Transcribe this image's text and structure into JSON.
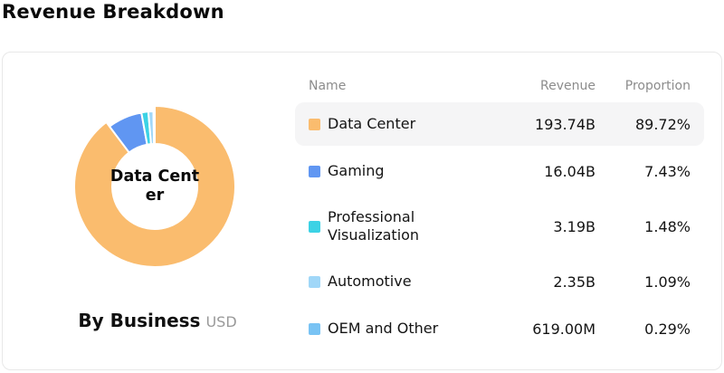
{
  "page": {
    "title": "Revenue Breakdown"
  },
  "colors": {
    "card_border": "#E8E8E8",
    "row_highlight": "#F5F5F6",
    "header_text": "#8C8C8C",
    "body_text": "#141414",
    "muted_text": "#999999",
    "slice_gap": "#FFFFFF"
  },
  "table": {
    "columns": [
      "Name",
      "Revenue",
      "Proportion"
    ]
  },
  "chart_data": {
    "type": "pie",
    "variant": "donut",
    "title": "By Business",
    "unit": "USD",
    "center_label": "Data Center",
    "center_label_lines": [
      "Data Cent",
      "er"
    ],
    "selected_index": 0,
    "legend_position": "right-table",
    "categories": [
      "Data Center",
      "Gaming",
      "Professional Visualization",
      "Automotive",
      "OEM and Other"
    ],
    "values_billions_usd": [
      193.74,
      16.04,
      3.19,
      2.35,
      0.619
    ],
    "series": [
      {
        "name": "Data Center",
        "revenue": "193.74B",
        "proportion": "89.72%",
        "percent": 89.72,
        "color": "#FABC6E",
        "highlighted": true
      },
      {
        "name": "Gaming",
        "revenue": "16.04B",
        "proportion": "7.43%",
        "percent": 7.43,
        "color": "#6096F2",
        "highlighted": false
      },
      {
        "name": "Professional Visualization",
        "revenue": "3.19B",
        "proportion": "1.48%",
        "percent": 1.48,
        "color": "#3CD2E5",
        "highlighted": false
      },
      {
        "name": "Automotive",
        "revenue": "2.35B",
        "proportion": "1.09%",
        "percent": 1.09,
        "color": "#A0D7F8",
        "highlighted": false
      },
      {
        "name": "OEM and Other",
        "revenue": "619.00M",
        "proportion": "0.29%",
        "percent": 0.29,
        "color": "#79C3F4",
        "highlighted": false
      }
    ]
  }
}
